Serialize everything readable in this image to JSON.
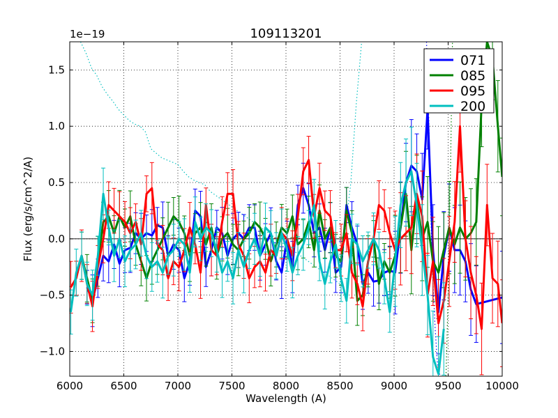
{
  "chart_data": {
    "type": "line",
    "title": "109113201",
    "xlabel": "Wavelength (A)",
    "ylabel": "Flux (erg/s/cm^2/A)",
    "offset_label": "1e−19",
    "xlim": [
      6000,
      10000
    ],
    "ylim": [
      -1.22,
      1.75
    ],
    "xticks": [
      6000,
      6500,
      7000,
      7500,
      8000,
      8500,
      9000,
      9500,
      10000
    ],
    "xtick_labels": [
      "6000",
      "6500",
      "7000",
      "7500",
      "8000",
      "8500",
      "9000",
      "9500",
      "10000"
    ],
    "yticks": [
      -1.0,
      -0.5,
      0.0,
      0.5,
      1.0,
      1.5
    ],
    "ytick_labels": [
      "−1.0",
      "−0.5",
      "0.0",
      "0.5",
      "1.0",
      "1.5"
    ],
    "grid": true,
    "legend_position": "top-right",
    "zero_line": true,
    "series": [
      {
        "name": "071",
        "color": "#0000ff",
        "x": [
          6160,
          6210,
          6260,
          6310,
          6360,
          6410,
          6460,
          6510,
          6560,
          6610,
          6660,
          6710,
          6760,
          6810,
          6860,
          6910,
          6960,
          7010,
          7060,
          7110,
          7160,
          7210,
          7260,
          7310,
          7360,
          7410,
          7460,
          7510,
          7560,
          7610,
          7660,
          7710,
          7760,
          7810,
          7860,
          7910,
          7960,
          8010,
          8060,
          8110,
          8160,
          8210,
          8260,
          8310,
          8360,
          8410,
          8460,
          8510,
          8560,
          8610,
          8660,
          8710,
          8760,
          8810,
          8860,
          8910,
          8960,
          9010,
          9060,
          9110,
          9160,
          9210,
          9260,
          9310,
          9360,
          9410,
          9460,
          9510,
          9560,
          9610,
          9660,
          9710,
          9760,
          10000
        ],
        "y": [
          -0.43,
          -0.55,
          -0.35,
          -0.15,
          -0.2,
          -0.05,
          -0.22,
          -0.1,
          -0.08,
          0.05,
          0.0,
          0.05,
          0.03,
          0.12,
          0.1,
          -0.15,
          -0.05,
          -0.1,
          -0.35,
          -0.2,
          0.25,
          0.2,
          -0.25,
          -0.1,
          0.1,
          0.05,
          -0.15,
          0.0,
          0.05,
          0.0,
          0.1,
          0.1,
          -0.15,
          -0.05,
          0.05,
          -0.2,
          -0.3,
          0.0,
          -0.25,
          0.3,
          0.45,
          0.3,
          0.05,
          0.1,
          -0.1,
          0.1,
          -0.3,
          -0.25,
          0.3,
          0.1,
          -0.05,
          -0.4,
          -0.3,
          -0.38,
          -0.37,
          -0.3,
          -0.28,
          -0.3,
          0.1,
          0.5,
          0.65,
          0.6,
          0.35,
          1.15,
          -0.1,
          -0.65,
          -0.15,
          0.1,
          -0.1,
          -0.1,
          -0.2,
          -0.45,
          -0.58,
          -0.52
        ]
      },
      {
        "name": "085",
        "color": "#008000",
        "x": [
          6110,
          6160,
          6210,
          6260,
          6310,
          6360,
          6410,
          6460,
          6510,
          6560,
          6610,
          6660,
          6710,
          6760,
          6810,
          6860,
          6910,
          6960,
          7010,
          7060,
          7110,
          7160,
          7210,
          7260,
          7310,
          7360,
          7410,
          7460,
          7510,
          7560,
          7610,
          7660,
          7710,
          7760,
          7810,
          7860,
          7910,
          7960,
          8010,
          8060,
          8110,
          8160,
          8210,
          8260,
          8310,
          8360,
          8410,
          8460,
          8510,
          8560,
          8610,
          8660,
          8710,
          8760,
          8810,
          8860,
          8910,
          8960,
          9010,
          9060,
          9110,
          9160,
          9210,
          9260,
          9310,
          9360,
          9410,
          9460,
          9510,
          9560,
          9610,
          9660,
          9710,
          9760,
          9810,
          9860,
          9910,
          9960,
          10000
        ],
        "y": [
          -0.15,
          -0.35,
          -0.55,
          -0.2,
          0.15,
          0.2,
          0.05,
          0.2,
          0.1,
          0.2,
          -0.05,
          -0.2,
          -0.35,
          -0.2,
          -0.1,
          0.0,
          0.1,
          0.2,
          0.15,
          0.05,
          -0.15,
          0.05,
          0.1,
          -0.05,
          0.1,
          -0.15,
          0.0,
          0.05,
          -0.05,
          -0.1,
          0.0,
          0.05,
          0.15,
          0.1,
          0.0,
          -0.2,
          -0.05,
          0.1,
          0.05,
          0.2,
          -0.05,
          0.0,
          0.15,
          -0.1,
          0.25,
          0.0,
          0.1,
          -0.15,
          -0.2,
          0.25,
          0.05,
          -0.55,
          -0.5,
          -0.2,
          0.0,
          -0.4,
          -0.2,
          -0.3,
          -0.15,
          0.1,
          0.4,
          -0.1,
          0.35,
          0.0,
          0.15,
          -0.2,
          -0.3,
          -0.1,
          0.1,
          -0.05,
          0.1,
          0.0,
          0.05,
          0.15,
          1.2,
          1.75,
          1.6,
          1.0,
          0.55
        ]
      },
      {
        "name": "095",
        "color": "#ff0000",
        "x": [
          6010,
          6060,
          6110,
          6160,
          6210,
          6260,
          6310,
          6360,
          6410,
          6460,
          6510,
          6560,
          6610,
          6660,
          6710,
          6760,
          6810,
          6860,
          6910,
          6960,
          7010,
          7060,
          7110,
          7160,
          7210,
          7260,
          7310,
          7360,
          7410,
          7460,
          7510,
          7560,
          7610,
          7660,
          7710,
          7760,
          7810,
          7860,
          7910,
          7960,
          8010,
          8060,
          8110,
          8160,
          8210,
          8260,
          8310,
          8360,
          8410,
          8460,
          8510,
          8560,
          8610,
          8660,
          8710,
          8760,
          8810,
          8860,
          8910,
          8960,
          9010,
          9060,
          9110,
          9160,
          9210,
          9260,
          9310,
          9360,
          9410,
          9460,
          9510,
          9560,
          9610,
          9660,
          9710,
          9760,
          9810,
          9860,
          9910,
          9960,
          10000
        ],
        "y": [
          -0.43,
          -0.35,
          -0.15,
          -0.4,
          -0.6,
          -0.25,
          0.0,
          0.3,
          0.25,
          0.2,
          0.15,
          0.05,
          0.15,
          -0.05,
          0.4,
          0.45,
          -0.05,
          -0.1,
          -0.35,
          -0.2,
          -0.25,
          -0.1,
          0.1,
          -0.05,
          -0.3,
          0.3,
          -0.1,
          -0.15,
          0.15,
          0.4,
          0.4,
          -0.05,
          -0.15,
          -0.35,
          -0.25,
          -0.2,
          -0.3,
          -0.1,
          -0.15,
          0.05,
          0.0,
          -0.15,
          0.2,
          0.6,
          0.7,
          0.2,
          0.45,
          0.25,
          0.2,
          -0.1,
          -0.1,
          0.05,
          -0.3,
          -0.4,
          -0.6,
          -0.2,
          0.0,
          0.3,
          0.25,
          0.05,
          -0.1,
          0.0,
          0.05,
          0.1,
          0.4,
          0.2,
          -0.5,
          -0.2,
          -0.75,
          -0.55,
          -0.2,
          0.15,
          1.0,
          0.0,
          -0.3,
          -0.5,
          -0.8,
          0.3,
          -0.35,
          -0.4,
          -0.75
        ]
      },
      {
        "name": "200",
        "color": "#00bfbf",
        "x": [
          6010,
          6060,
          6110,
          6160,
          6210,
          6260,
          6310,
          6360,
          6410,
          6460,
          6510,
          6560,
          6610,
          6660,
          6710,
          6760,
          6810,
          6860,
          6910,
          6960,
          7010,
          7060,
          7110,
          7160,
          7210,
          7260,
          7310,
          7360,
          7410,
          7460,
          7510,
          7560,
          7610,
          7660,
          7710,
          7760,
          7810,
          7860,
          7910,
          7960,
          8010,
          8060,
          8110,
          8160,
          8210,
          8260,
          8310,
          8360,
          8410,
          8460,
          8510,
          8560,
          8610,
          8660,
          8710,
          8760,
          8810,
          8860,
          8910,
          8960,
          9010,
          9060,
          9110,
          9160,
          9210,
          9260,
          9310,
          9360,
          9410,
          9460
        ],
        "y": [
          -0.65,
          -0.3,
          -0.15,
          -0.4,
          -0.5,
          -0.15,
          0.4,
          0.1,
          -0.15,
          0.0,
          -0.2,
          -0.1,
          -0.05,
          0.05,
          -0.15,
          -0.25,
          -0.2,
          -0.3,
          -0.15,
          -0.1,
          0.0,
          -0.05,
          -0.3,
          0.15,
          0.0,
          0.1,
          0.05,
          -0.1,
          -0.3,
          -0.2,
          -0.35,
          -0.1,
          -0.25,
          -0.1,
          0.0,
          -0.15,
          0.1,
          0.05,
          -0.15,
          0.05,
          -0.1,
          -0.3,
          -0.15,
          -0.05,
          0.1,
          0.3,
          -0.2,
          -0.4,
          -0.2,
          -0.05,
          -0.35,
          -0.55,
          0.0,
          -0.05,
          -0.2,
          -0.1,
          0.0,
          -0.1,
          -0.35,
          -0.65,
          -0.2,
          0.3,
          0.5,
          0.6,
          0.3,
          -0.1,
          -0.5,
          -1.05,
          -1.2,
          -0.8
        ]
      }
    ],
    "overlays": [
      {
        "name": "200 dotted",
        "color": "#00bfbf",
        "style": "dotted",
        "x": [
          6100,
          6150,
          6200,
          6250,
          6300,
          6350,
          6400,
          6450,
          6500,
          6550,
          6600,
          6650,
          6700,
          6750,
          6800,
          6850,
          6900,
          6950,
          7000,
          7050,
          7100,
          7150,
          7200,
          7250,
          7300,
          8500,
          8550,
          8600,
          8650,
          8700
        ],
        "y": [
          1.75,
          1.65,
          1.52,
          1.45,
          1.35,
          1.28,
          1.22,
          1.15,
          1.1,
          1.05,
          1.02,
          1.0,
          0.95,
          0.8,
          0.76,
          0.72,
          0.7,
          0.68,
          0.66,
          0.6,
          0.55,
          0.52,
          0.5,
          0.48,
          0.42,
          -0.4,
          0.1,
          0.5,
          1.2,
          1.75
        ]
      },
      {
        "name": "071 dotted",
        "color": "#0000ff",
        "style": "dotted",
        "x": [
          9300,
          9320,
          9340,
          9360,
          9380,
          9400,
          9420,
          9440
        ],
        "y": [
          1.75,
          1.1,
          0.2,
          -0.4,
          -0.8,
          -1.1,
          -1.2,
          -1.22
        ]
      },
      {
        "name": "085 dotted",
        "color": "#008000",
        "style": "dotted",
        "x": [
          9480,
          9500,
          9520,
          9540
        ],
        "y": [
          -1.22,
          -0.5,
          0.5,
          1.75
        ]
      }
    ]
  }
}
